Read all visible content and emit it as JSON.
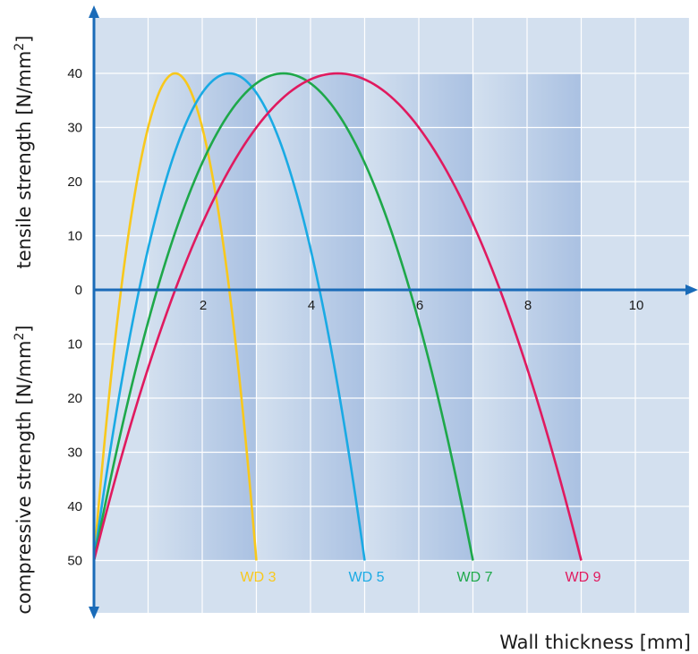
{
  "chart_data": {
    "type": "line",
    "title": "",
    "xlabel": "Wall thickness [mm]",
    "ylabel_upper": "tensile strength [N/mm",
    "ylabel_lower": "compressive strength [N/mm",
    "ylabel_superscript": "2",
    "ylabel_close": "]",
    "xlim": [
      0,
      11
    ],
    "ylim": [
      -50,
      40
    ],
    "x_ticks": [
      {
        "value": 2,
        "label": "2"
      },
      {
        "value": 4,
        "label": "4"
      },
      {
        "value": 6,
        "label": "6"
      },
      {
        "value": 8,
        "label": "8"
      },
      {
        "value": 10,
        "label": "10"
      }
    ],
    "y_ticks": [
      {
        "value": 40,
        "label": "40"
      },
      {
        "value": 30,
        "label": "30"
      },
      {
        "value": 20,
        "label": "20"
      },
      {
        "value": 10,
        "label": "10"
      },
      {
        "value": 0,
        "label": "0"
      },
      {
        "value": -10,
        "label": "10"
      },
      {
        "value": -20,
        "label": "20"
      },
      {
        "value": -30,
        "label": "30"
      },
      {
        "value": -40,
        "label": "40"
      },
      {
        "value": -50,
        "label": "50"
      }
    ],
    "grid": true,
    "shaded_bands": [
      {
        "from": 1,
        "to": 3
      },
      {
        "from": 3,
        "to": 5
      },
      {
        "from": 5,
        "to": 7
      },
      {
        "from": 7,
        "to": 9
      }
    ],
    "series": [
      {
        "name": "WD 3",
        "color": "#f8c81c",
        "x": [
          0,
          1.5,
          3
        ],
        "y": [
          -50,
          40,
          -50
        ]
      },
      {
        "name": "WD 5",
        "color": "#1aaae4",
        "x": [
          0,
          2.5,
          5
        ],
        "y": [
          -50,
          40,
          -50
        ]
      },
      {
        "name": "WD 7",
        "color": "#1ea84a",
        "x": [
          0,
          3.5,
          7
        ],
        "y": [
          -50,
          40,
          -50
        ]
      },
      {
        "name": "WD 9",
        "color": "#e01a5f",
        "x": [
          0,
          4.5,
          9
        ],
        "y": [
          -50,
          40,
          -50
        ]
      }
    ],
    "colors": {
      "background": "#d3e0ef",
      "band_dark": "#aac1e2",
      "grid": "#ffffff",
      "axis": "#1a6bb8"
    }
  }
}
